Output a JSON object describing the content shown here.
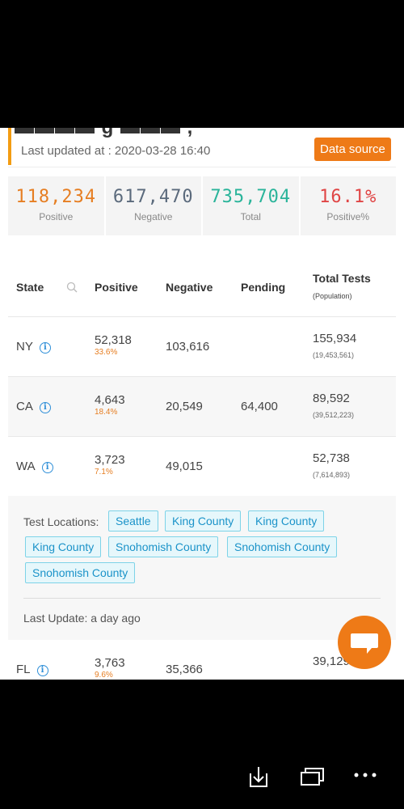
{
  "header": {
    "last_updated": "Last updated at : 2020-03-28 16:40",
    "data_source_label": "Data source"
  },
  "stats": [
    {
      "value": "118,234",
      "label": "Positive",
      "color": "#e67e22"
    },
    {
      "value": "617,470",
      "label": "Negative",
      "color": "#5b6a7c"
    },
    {
      "value": "735,704",
      "label": "Total",
      "color": "#2ab49a"
    },
    {
      "value": "16.1%",
      "label": "Positive%",
      "color": "#e04545"
    }
  ],
  "table": {
    "headers": {
      "state": "State",
      "positive": "Positive",
      "negative": "Negative",
      "pending": "Pending",
      "total_tests": "Total Tests",
      "population": "(Population)"
    },
    "rows": [
      {
        "state": "NY",
        "positive": "52,318",
        "positive_pct": "33.6%",
        "negative": "103,616",
        "pending": "",
        "total": "155,934",
        "population": "(19,453,561)"
      },
      {
        "state": "CA",
        "positive": "4,643",
        "positive_pct": "18.4%",
        "negative": "20,549",
        "pending": "64,400",
        "total": "89,592",
        "population": "(39,512,223)"
      },
      {
        "state": "WA",
        "positive": "3,723",
        "positive_pct": "7.1%",
        "negative": "49,015",
        "pending": "",
        "total": "52,738",
        "population": "(7,614,893)"
      },
      {
        "state": "FL",
        "positive": "3,763",
        "positive_pct": "9.6%",
        "negative": "35,366",
        "pending": "",
        "total": "39,129",
        "population": ""
      }
    ]
  },
  "expanded": {
    "test_locations_label": "Test Locations:",
    "tags": [
      "Seattle",
      "King County",
      "King County",
      "King County",
      "Snohomish County",
      "Snohomish County",
      "Snohomish County"
    ],
    "last_update": "Last Update: a day ago"
  },
  "icons": {
    "search": "search-icon",
    "info": "info-icon",
    "chat": "chat-icon",
    "download": "download-icon",
    "windows": "windows-icon",
    "more": "more-icon"
  },
  "colors": {
    "accent": "#ee7a17",
    "tag_text": "#1b93c9",
    "tag_bg": "#e6f7fb"
  }
}
